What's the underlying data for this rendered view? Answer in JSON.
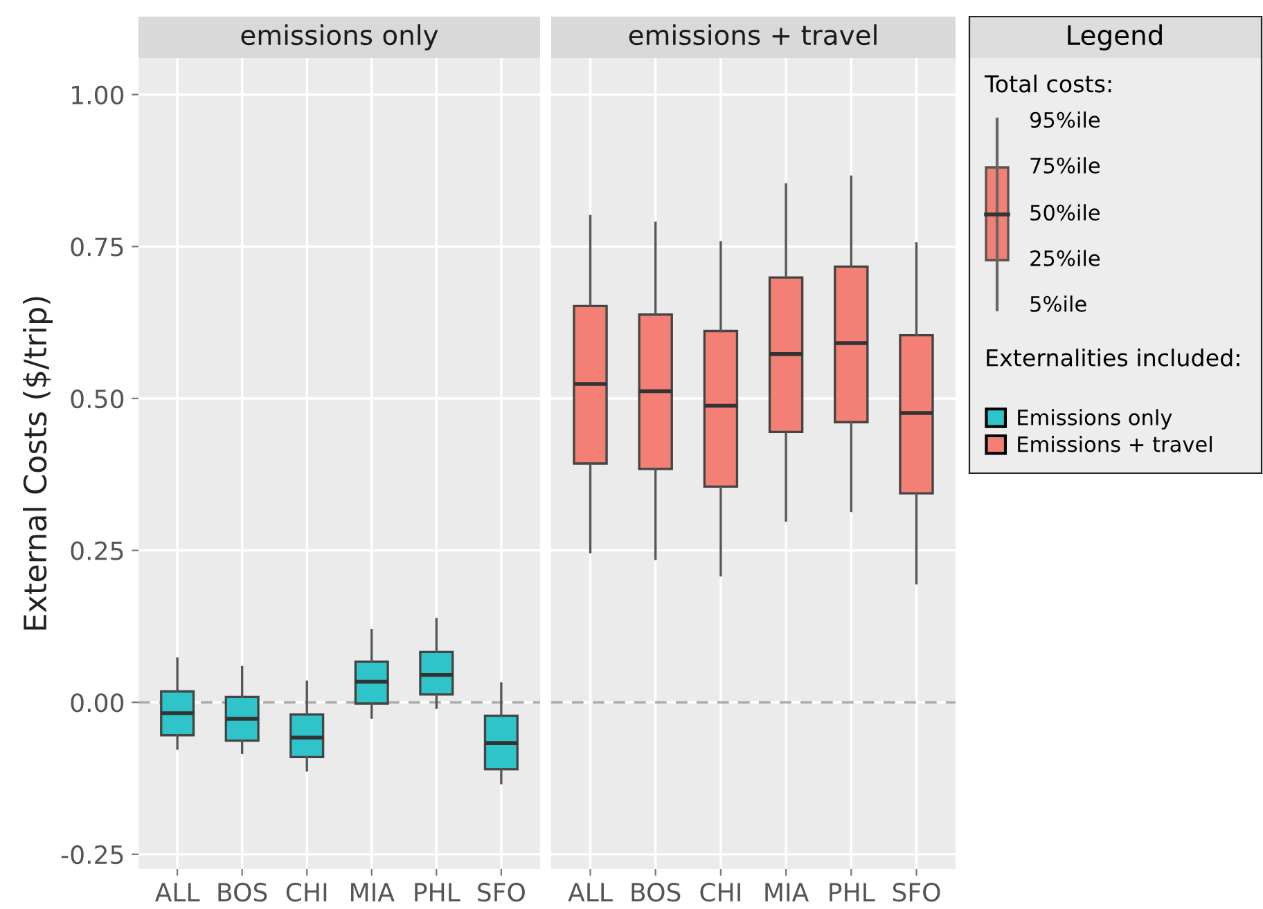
{
  "chart_data": [
    {
      "type": "box",
      "title": "emissions only",
      "ylabel": "External Costs ($/trip)",
      "categories": [
        "ALL",
        "BOS",
        "CHI",
        "MIA",
        "PHL",
        "SFO"
      ],
      "series": [
        {
          "name": "Emissions only",
          "color": "#2ec4c9",
          "boxes": [
            {
              "low": -0.076,
              "q1": -0.054,
              "median": -0.018,
              "q3": 0.018,
              "high": 0.072
            },
            {
              "low": -0.083,
              "q1": -0.063,
              "median": -0.027,
              "q3": 0.009,
              "high": 0.058
            },
            {
              "low": -0.112,
              "q1": -0.09,
              "median": -0.058,
              "q3": -0.02,
              "high": 0.034
            },
            {
              "low": -0.025,
              "q1": -0.002,
              "median": 0.034,
              "q3": 0.067,
              "high": 0.119
            },
            {
              "low": -0.009,
              "q1": 0.013,
              "median": 0.045,
              "q3": 0.083,
              "high": 0.137
            },
            {
              "low": -0.133,
              "q1": -0.11,
              "median": -0.067,
              "q3": -0.022,
              "high": 0.031
            }
          ]
        }
      ],
      "ylim": [
        -0.274,
        1.06
      ],
      "yticks": [
        {
          "value": -0.25,
          "label": "-0.25"
        },
        {
          "value": 0,
          "label": "0.00"
        },
        {
          "value": 0.25,
          "label": "0.25"
        },
        {
          "value": 0.5,
          "label": "0.50"
        },
        {
          "value": 0.75,
          "label": "0.75"
        },
        {
          "value": 1,
          "label": "1.00"
        }
      ],
      "ref_lines": [
        {
          "axis": "y",
          "value": 0,
          "color": "#aaaaaa",
          "line_style": "dashed"
        }
      ],
      "grid": true
    },
    {
      "type": "box",
      "title": "emissions + travel",
      "categories": [
        "ALL",
        "BOS",
        "CHI",
        "MIA",
        "PHL",
        "SFO"
      ],
      "series": [
        {
          "name": "Emissions + travel",
          "color": "#f47f74",
          "boxes": [
            {
              "low": 0.247,
              "q1": 0.393,
              "median": 0.524,
              "q3": 0.652,
              "high": 0.8
            },
            {
              "low": 0.236,
              "q1": 0.384,
              "median": 0.512,
              "q3": 0.638,
              "high": 0.789
            },
            {
              "low": 0.209,
              "q1": 0.355,
              "median": 0.488,
              "q3": 0.611,
              "high": 0.757
            },
            {
              "low": 0.299,
              "q1": 0.445,
              "median": 0.573,
              "q3": 0.699,
              "high": 0.852
            },
            {
              "low": 0.315,
              "q1": 0.461,
              "median": 0.591,
              "q3": 0.717,
              "high": 0.865
            },
            {
              "low": 0.196,
              "q1": 0.344,
              "median": 0.476,
              "q3": 0.604,
              "high": 0.755
            }
          ]
        }
      ],
      "ylim": [
        -0.274,
        1.06
      ],
      "yticks": [
        -0.25,
        0,
        0.25,
        0.5,
        0.75,
        1
      ],
      "ref_lines": [
        {
          "axis": "y",
          "value": 0,
          "color": "#aaaaaa",
          "line_style": "dashed"
        }
      ],
      "grid": true,
      "tick_labels": "x",
      "legend": "right",
      "legend_title": "Legend",
      "annotations": [
        "Total costs:",
        "95%ile",
        "75%ile",
        "50%ile",
        "25%ile",
        "5%ile",
        "Externalities included:"
      ]
    }
  ]
}
